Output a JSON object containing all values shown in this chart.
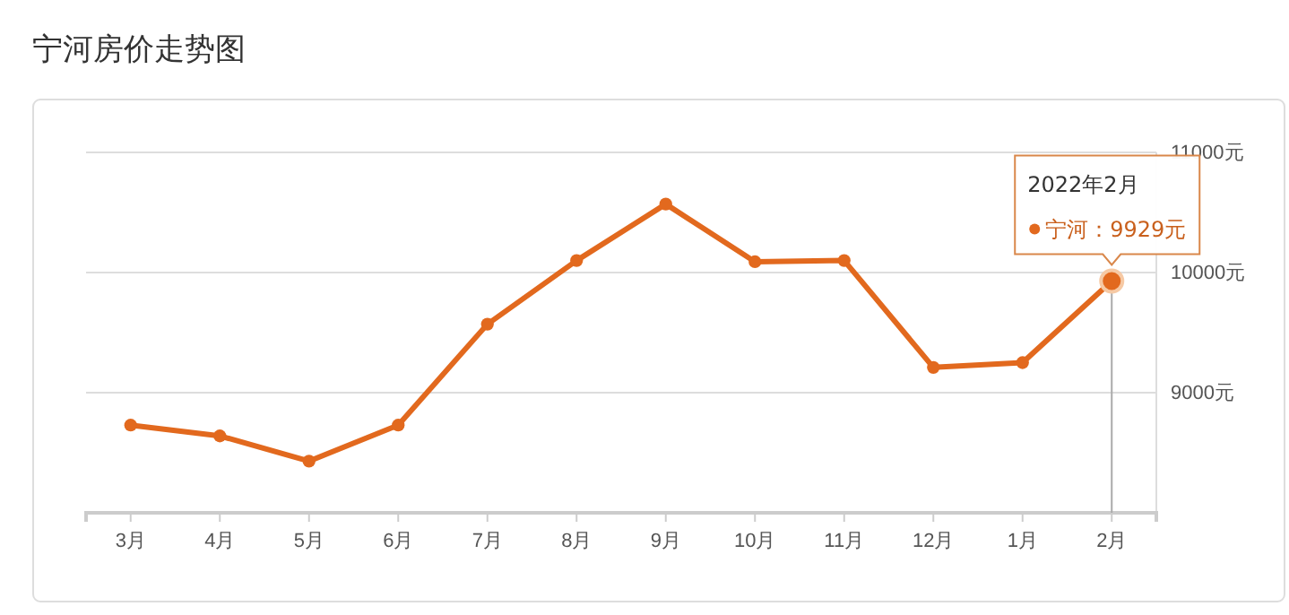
{
  "chart_data": {
    "type": "line",
    "title": "宁河房价走势图",
    "categories": [
      "3月",
      "4月",
      "5月",
      "6月",
      "7月",
      "8月",
      "9月",
      "10月",
      "11月",
      "12月",
      "1月",
      "2月"
    ],
    "series": [
      {
        "color": "#e2691e",
        "values": [
          8730,
          8640,
          8430,
          8730,
          9570,
          10100,
          10570,
          10090,
          10100,
          9210,
          9250,
          9929
        ]
      }
    ],
    "ylim": [
      8000,
      11000
    ],
    "yticks": [
      {
        "value": 9000,
        "label": "9000元"
      },
      {
        "value": 10000,
        "label": "10000元"
      },
      {
        "value": 11000,
        "label": "11000元"
      }
    ],
    "grid": "y",
    "marker": "circle",
    "line_style": "solid",
    "annotations": [
      "2022年2月",
      "宁河：9929元"
    ],
    "ref_lines": [
      {
        "axis": "x",
        "value": "2月",
        "color": "#aaaaaa"
      }
    ]
  }
}
